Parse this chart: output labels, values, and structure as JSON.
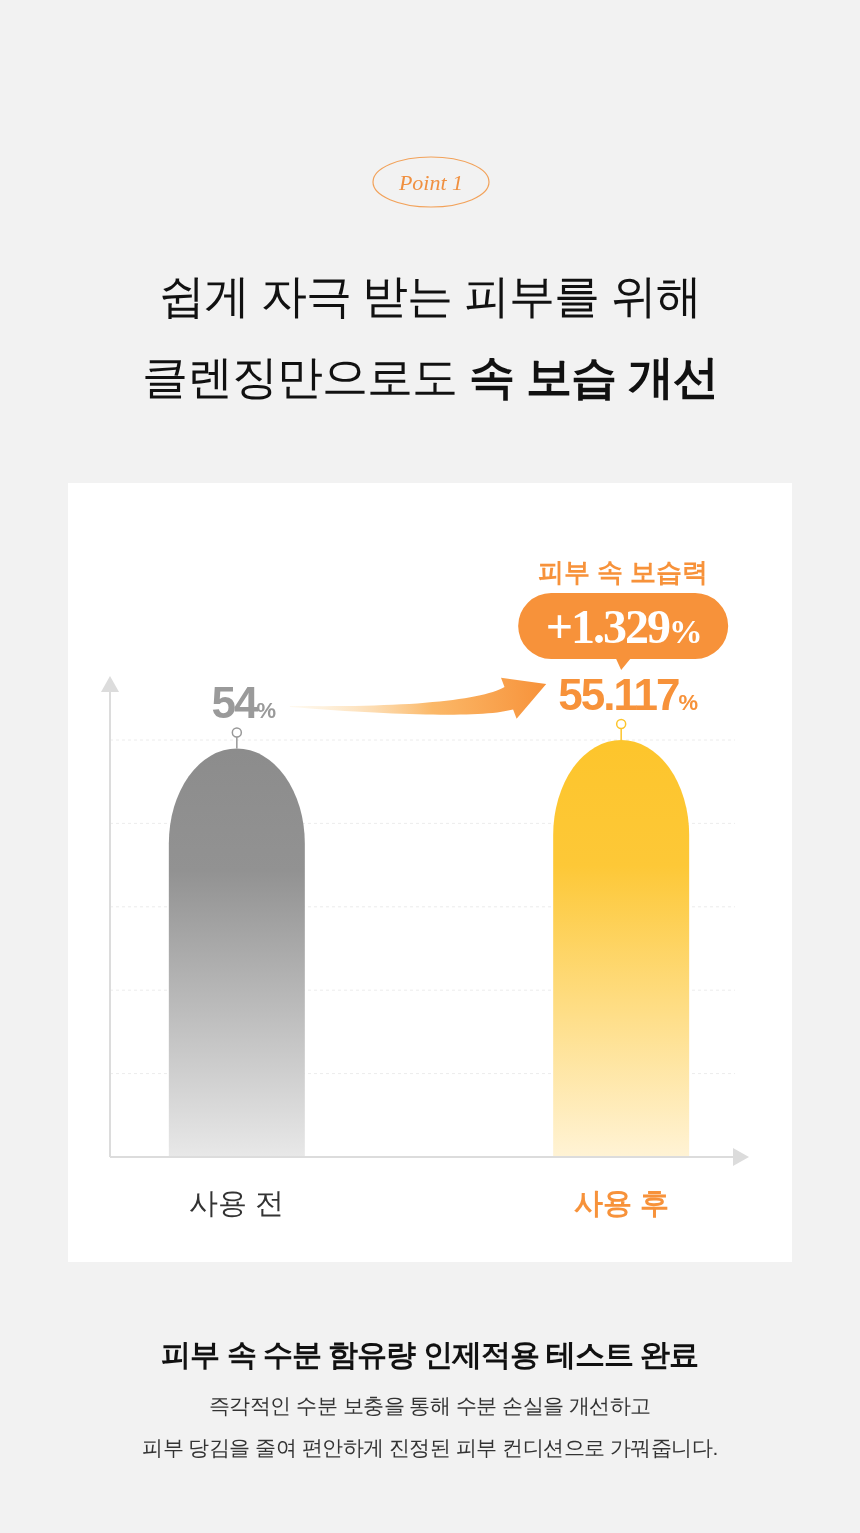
{
  "chart_data": {
    "type": "bar",
    "title": "쉽게 자극 받는 피부를 위해\n클렌징만으로도 속 보습 개선",
    "categories": [
      "사용 전",
      "사용 후"
    ],
    "values": [
      54,
      55.117
    ],
    "colors": [
      "#8c8c8c",
      "#fdc52c"
    ],
    "value_labels": [
      "54%",
      "55.117%"
    ],
    "grid": true,
    "tick_labels": "x",
    "annotations": [
      "Point 1",
      "피부 속 보습력",
      "+1.329%",
      "피부 속 수분 함유량 인제적용 테스트 완료",
      "즉각적인 수분 보충을 통해 수분 손실을 개선하고",
      "피부 당김을 줄여 편안하게 진정된 피부 컨디션으로 가꿔줍니다."
    ]
  }
}
